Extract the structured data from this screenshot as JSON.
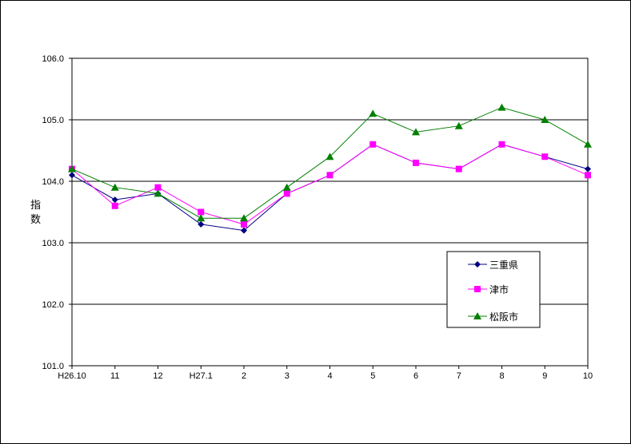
{
  "chart_data": {
    "type": "line",
    "categories": [
      "H26.10",
      "11",
      "12",
      "H27.1",
      "2",
      "3",
      "4",
      "5",
      "6",
      "7",
      "8",
      "9",
      "10"
    ],
    "ylabel": "指数",
    "ylim": [
      101.0,
      106.0
    ],
    "yticks": [
      "101.0",
      "102.0",
      "103.0",
      "104.0",
      "105.0",
      "106.0"
    ],
    "grid": true,
    "legend_position": "bottom-right",
    "series": [
      {
        "name": "三重県",
        "color": "#000080",
        "marker": "diamond",
        "values": [
          104.1,
          103.7,
          103.8,
          103.3,
          103.2,
          103.8,
          104.1,
          104.6,
          104.3,
          104.2,
          104.6,
          104.4,
          104.2
        ]
      },
      {
        "name": "津市",
        "color": "#ff00ff",
        "marker": "square",
        "values": [
          104.2,
          103.6,
          103.9,
          103.5,
          103.3,
          103.8,
          104.1,
          104.6,
          104.3,
          104.2,
          104.6,
          104.4,
          104.1
        ]
      },
      {
        "name": "松阪市",
        "color": "#008000",
        "marker": "triangle",
        "values": [
          104.2,
          103.9,
          103.8,
          103.4,
          103.4,
          103.9,
          104.4,
          105.1,
          104.8,
          104.9,
          105.2,
          105.0,
          104.6
        ]
      }
    ]
  }
}
